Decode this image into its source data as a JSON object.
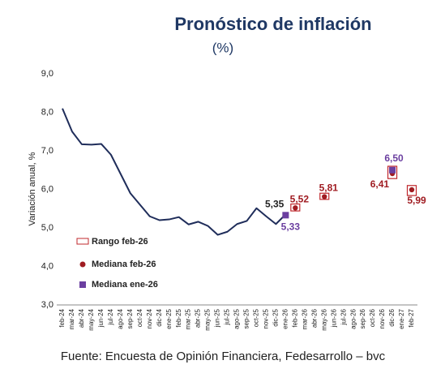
{
  "chart_data": {
    "type": "line",
    "title": "Pronóstico de inflación",
    "subtitle": "(%)",
    "y_label": "Variación anual, %",
    "source": "Fuente: Encuesta de Opinión Financiera, Fedesarrollo – bvc",
    "categories": [
      "feb-24",
      "mar-24",
      "abr-24",
      "may-24",
      "jun-24",
      "jul-24",
      "ago-24",
      "sep-24",
      "oct-24",
      "nov-24",
      "dic-24",
      "ene-25",
      "feb-25",
      "mar-25",
      "abr-25",
      "may-25",
      "jun-25",
      "jul-25",
      "ago-25",
      "sep-25",
      "oct-25",
      "nov-25",
      "dic-25",
      "ene-26",
      "feb-26",
      "mar-26",
      "abr-26",
      "may-26",
      "jun-26",
      "jul-26",
      "ago-26",
      "sep-26",
      "oct-26",
      "nov-26",
      "dic-26",
      "ene-27",
      "feb-27"
    ],
    "ylim": [
      3,
      9
    ],
    "yticks": [
      {
        "value": 3,
        "label": "3,0"
      },
      {
        "value": 4,
        "label": "4,0"
      },
      {
        "value": 5,
        "label": "5,0"
      },
      {
        "value": 6,
        "label": "6,0"
      },
      {
        "value": 7,
        "label": "7,0"
      },
      {
        "value": 8,
        "label": "8,0"
      },
      {
        "value": 9,
        "label": "9,0"
      }
    ],
    "series": [
      {
        "name": "Inflación",
        "color": "#1f2d5a",
        "values": [
          8.1,
          7.5,
          7.17,
          7.16,
          7.18,
          6.9,
          6.4,
          5.9,
          5.6,
          5.3,
          5.2,
          5.22,
          5.28,
          5.09,
          5.16,
          5.05,
          4.82,
          4.9,
          5.1,
          5.18,
          5.51,
          5.3,
          5.1,
          5.35,
          null,
          null,
          null,
          null,
          null,
          null,
          null,
          null,
          null,
          null,
          null,
          null,
          null
        ],
        "value_labels": [
          null,
          null,
          null,
          null,
          null,
          null,
          null,
          null,
          null,
          null,
          null,
          null,
          null,
          null,
          null,
          null,
          null,
          null,
          null,
          null,
          null,
          null,
          null,
          "5,35",
          null,
          null,
          null,
          null,
          null,
          null,
          null,
          null,
          null,
          null,
          null,
          null,
          null
        ]
      },
      {
        "name": "Rango feb-26",
        "color": "#c0282d",
        "low": [
          null,
          null,
          null,
          null,
          null,
          null,
          null,
          null,
          null,
          null,
          null,
          null,
          null,
          null,
          null,
          null,
          null,
          null,
          null,
          null,
          null,
          null,
          null,
          null,
          5.44,
          null,
          null,
          5.74,
          null,
          null,
          null,
          null,
          null,
          null,
          6.28,
          null,
          5.84
        ],
        "high": [
          null,
          null,
          null,
          null,
          null,
          null,
          null,
          null,
          null,
          null,
          null,
          null,
          null,
          null,
          null,
          null,
          null,
          null,
          null,
          null,
          null,
          null,
          null,
          null,
          5.62,
          null,
          null,
          5.9,
          null,
          null,
          null,
          null,
          null,
          null,
          6.6,
          null,
          6.1
        ]
      },
      {
        "name": "Mediana feb-26",
        "color": "#a01c22",
        "values": [
          null,
          null,
          null,
          null,
          null,
          null,
          null,
          null,
          null,
          null,
          null,
          null,
          null,
          null,
          null,
          null,
          null,
          null,
          null,
          null,
          null,
          null,
          null,
          null,
          5.52,
          null,
          null,
          5.81,
          null,
          null,
          null,
          null,
          null,
          null,
          6.41,
          null,
          5.99
        ],
        "value_labels": [
          null,
          null,
          null,
          null,
          null,
          null,
          null,
          null,
          null,
          null,
          null,
          null,
          null,
          null,
          null,
          null,
          null,
          null,
          null,
          null,
          null,
          null,
          null,
          null,
          "5,52",
          null,
          null,
          "5,81",
          null,
          null,
          null,
          null,
          null,
          null,
          "6,41",
          null,
          "5,99"
        ]
      },
      {
        "name": "Mediana ene-26",
        "color": "#6b3fa0",
        "values": [
          null,
          null,
          null,
          null,
          null,
          null,
          null,
          null,
          null,
          null,
          null,
          null,
          null,
          null,
          null,
          null,
          null,
          null,
          null,
          null,
          null,
          null,
          null,
          5.33,
          null,
          null,
          null,
          null,
          null,
          null,
          null,
          null,
          null,
          null,
          6.5,
          null,
          null
        ],
        "value_labels": [
          null,
          null,
          null,
          null,
          null,
          null,
          null,
          null,
          null,
          null,
          null,
          null,
          null,
          null,
          null,
          null,
          null,
          null,
          null,
          null,
          null,
          null,
          null,
          "5,33",
          null,
          null,
          null,
          null,
          null,
          null,
          null,
          null,
          null,
          null,
          "6,50",
          null,
          null
        ]
      }
    ]
  }
}
